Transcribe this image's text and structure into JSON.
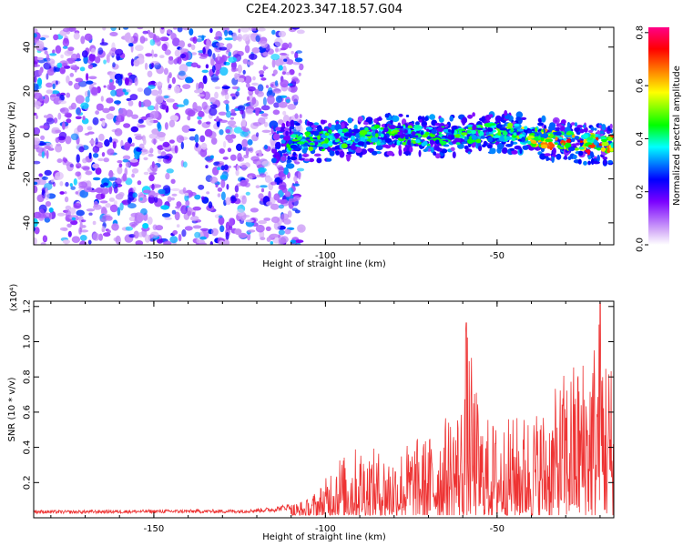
{
  "title": "C2E4.2023.347.18.57.G04",
  "chart_data": [
    {
      "type": "heatmap",
      "title": "C2E4.2023.347.18.57.G04",
      "xlabel": "Height of straight line (km)",
      "ylabel": "Frequency (Hz)",
      "xlim": [
        -185,
        -16
      ],
      "ylim": [
        -50,
        49
      ],
      "x_ticks": [
        -150,
        -100,
        -50
      ],
      "x_tick_labels": [
        "-150",
        "-100",
        "-50"
      ],
      "y_ticks": [
        -40,
        -20,
        0,
        20,
        40
      ],
      "y_tick_labels": [
        "-40",
        "-20",
        "0",
        "20",
        "40"
      ],
      "colorbar": {
        "label": "Normalized spectral amplitude",
        "range": [
          0,
          0.82
        ],
        "ticks": [
          0.0,
          0.2,
          0.4,
          0.6,
          0.8
        ],
        "tick_labels": [
          "0.0",
          "0.2",
          "0.4",
          "0.6",
          "0.8"
        ],
        "colors": [
          "#ffffff",
          "#d8b4f8",
          "#7a00ff",
          "#0000ff",
          "#00ffff",
          "#00ff00",
          "#ffff00",
          "#ff8000",
          "#ff0000",
          "#ff0088"
        ]
      },
      "band": {
        "x": [
          -115,
          -105,
          -95,
          -85,
          -75,
          -65,
          -55,
          -45,
          -35,
          -25,
          -16
        ],
        "center_freq": [
          -3,
          -3,
          -2,
          0,
          0,
          -1,
          1,
          1,
          -2,
          -4,
          -4
        ],
        "peak_amplitude": [
          0.45,
          0.5,
          0.5,
          0.5,
          0.5,
          0.5,
          0.5,
          0.55,
          0.7,
          0.8,
          0.75
        ]
      },
      "noise_region": {
        "x_from": -185,
        "x_to": -115,
        "amplitude_range": [
          0.1,
          0.35
        ]
      },
      "grid": false
    },
    {
      "type": "line",
      "xlabel": "Height of straight line (km)",
      "ylabel": "SNR (10 * v/v)",
      "y_multiplier_label": "(x10⁴)",
      "xlim": [
        -185,
        -16
      ],
      "ylim": [
        0,
        12300
      ],
      "x_ticks": [
        -150,
        -100,
        -50
      ],
      "x_tick_labels": [
        "-150",
        "-100",
        "-50"
      ],
      "y_ticks": [
        2000,
        4000,
        6000,
        8000,
        10000,
        12000
      ],
      "y_tick_labels": [
        "0.2",
        "0.4",
        "0.6",
        "0.8",
        "1.0",
        "1.2"
      ],
      "series": [
        {
          "color": "#ee3333",
          "x": [
            -185,
            -175,
            -165,
            -155,
            -145,
            -135,
            -125,
            -115,
            -105,
            -100,
            -97,
            -95,
            -90,
            -85,
            -80,
            -75,
            -70,
            -65,
            -60,
            -59,
            -55,
            -50,
            -45,
            -40,
            -35,
            -30,
            -25,
            -22,
            -20,
            -18,
            -16
          ],
          "envelope": [
            450,
            420,
            450,
            460,
            470,
            470,
            480,
            600,
            1100,
            2200,
            4000,
            3500,
            4200,
            3900,
            3800,
            4500,
            4700,
            5800,
            6900,
            11200,
            6000,
            5500,
            5800,
            6200,
            6500,
            8600,
            9500,
            10500,
            12300,
            10000,
            8800
          ]
        }
      ],
      "grid": false
    }
  ]
}
